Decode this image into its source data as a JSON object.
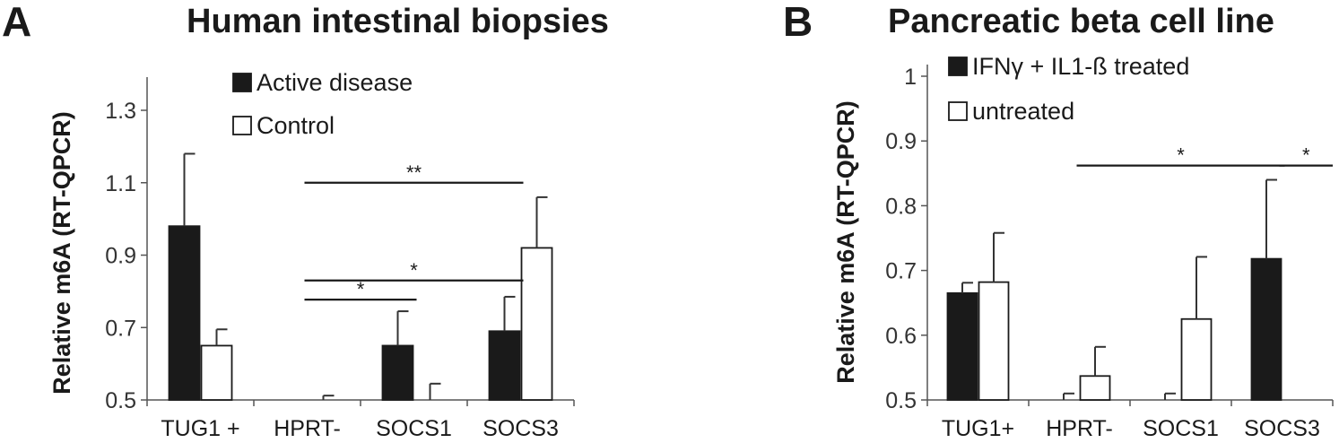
{
  "panels": [
    {
      "letter": "A",
      "title": "Human intestinal biopsies"
    },
    {
      "letter": "B",
      "title": "Pancreatic beta cell line"
    }
  ],
  "chart_data": [
    {
      "type": "bar",
      "title": "Human intestinal biopsies",
      "ylabel": "Relative m6A (RT-QPCR)",
      "xlabel": "",
      "categories": [
        "TUG1 +",
        "HPRT-",
        "SOCS1",
        "SOCS3"
      ],
      "ylim": [
        0.5,
        1.3
      ],
      "yticks": [
        "0.5",
        "0.7",
        "0.9",
        "1.1",
        "1.3"
      ],
      "series": [
        {
          "name": "Active disease",
          "color": "#1a1a1a",
          "values": [
            0.98,
            0.5,
            0.65,
            0.69
          ],
          "errors": [
            0.2,
            0.0,
            0.095,
            0.095
          ]
        },
        {
          "name": "Control",
          "color": "#ffffff",
          "values": [
            0.65,
            0.5,
            0.5,
            0.92
          ],
          "errors": [
            0.045,
            0.012,
            0.045,
            0.14
          ]
        }
      ],
      "significance": [
        {
          "from": 1,
          "to": 2,
          "label": "*",
          "y": 0.777
        },
        {
          "from": 1,
          "to": 3,
          "label": "*",
          "y": 0.83
        },
        {
          "from": 1,
          "to": 3,
          "label": "**",
          "y": 1.1
        }
      ],
      "grid": false,
      "legend_position": "top-right"
    },
    {
      "type": "bar",
      "title": "Pancreatic beta cell line",
      "ylabel": "Relative m6A (RT-QPCR)",
      "xlabel": "",
      "categories": [
        "TUG1+",
        "HPRT-",
        "SOCS1",
        "SOCS3"
      ],
      "ylim": [
        0.5,
        1.0
      ],
      "yticks": [
        "0.5",
        "0.6",
        "0.7",
        "0.8",
        "0.9",
        "1"
      ],
      "series": [
        {
          "name": "IFNγ + IL1-ß treated",
          "color": "#1a1a1a",
          "values": [
            0.665,
            0.5,
            0.5,
            0.718
          ],
          "errors": [
            0.016,
            0.01,
            0.01,
            0.122
          ]
        },
        {
          "name": "untreated",
          "color": "#ffffff",
          "values": [
            0.682,
            0.537,
            0.625,
            0.5
          ],
          "errors": [
            0.076,
            0.045,
            0.096,
            0.0
          ]
        }
      ],
      "significance": [
        {
          "from": 1,
          "to": 3,
          "label": "*",
          "y": 0.862
        },
        {
          "from": 3,
          "to": 3.6,
          "label": "*",
          "y": 0.862
        }
      ],
      "grid": false,
      "legend_position": "top-left"
    }
  ]
}
